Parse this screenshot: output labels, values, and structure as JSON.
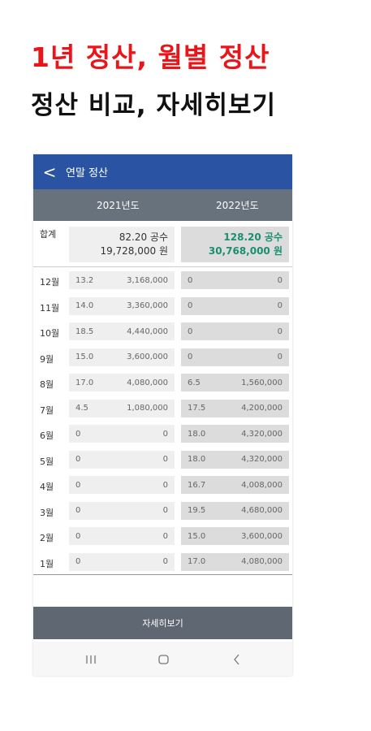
{
  "header": {
    "title": "1년 정산, 월별 정산",
    "subtitle": "정산 비교, 자세히보기"
  },
  "app": {
    "title": "연말 정산",
    "columns": [
      "2021년도",
      "2022년도"
    ],
    "total": {
      "label": "합계",
      "y2021": [
        "82.20 공수",
        "19,728,000 원"
      ],
      "y2022": [
        "128.20 공수",
        "30,768,000 원"
      ]
    },
    "rows": [
      [
        "12월",
        "13.2",
        "3,168,000",
        "0",
        "0"
      ],
      [
        "11월",
        "14.0",
        "3,360,000",
        "0",
        "0"
      ],
      [
        "10월",
        "18.5",
        "4,440,000",
        "0",
        "0"
      ],
      [
        "9월",
        "15.0",
        "3,600,000",
        "0",
        "0"
      ],
      [
        "8월",
        "17.0",
        "4,080,000",
        "6.5",
        "1,560,000"
      ],
      [
        "7월",
        "4.5",
        "1,080,000",
        "17.5",
        "4,200,000"
      ],
      [
        "6월",
        "0",
        "0",
        "18.0",
        "4,320,000"
      ],
      [
        "5월",
        "0",
        "0",
        "18.0",
        "4,320,000"
      ],
      [
        "4월",
        "0",
        "0",
        "16.7",
        "4,008,000"
      ],
      [
        "3월",
        "0",
        "0",
        "19.5",
        "4,680,000"
      ],
      [
        "2월",
        "0",
        "0",
        "15.0",
        "3,600,000"
      ],
      [
        "1월",
        "0",
        "0",
        "17.0",
        "4,080,000"
      ]
    ],
    "button": "자세히보기"
  }
}
